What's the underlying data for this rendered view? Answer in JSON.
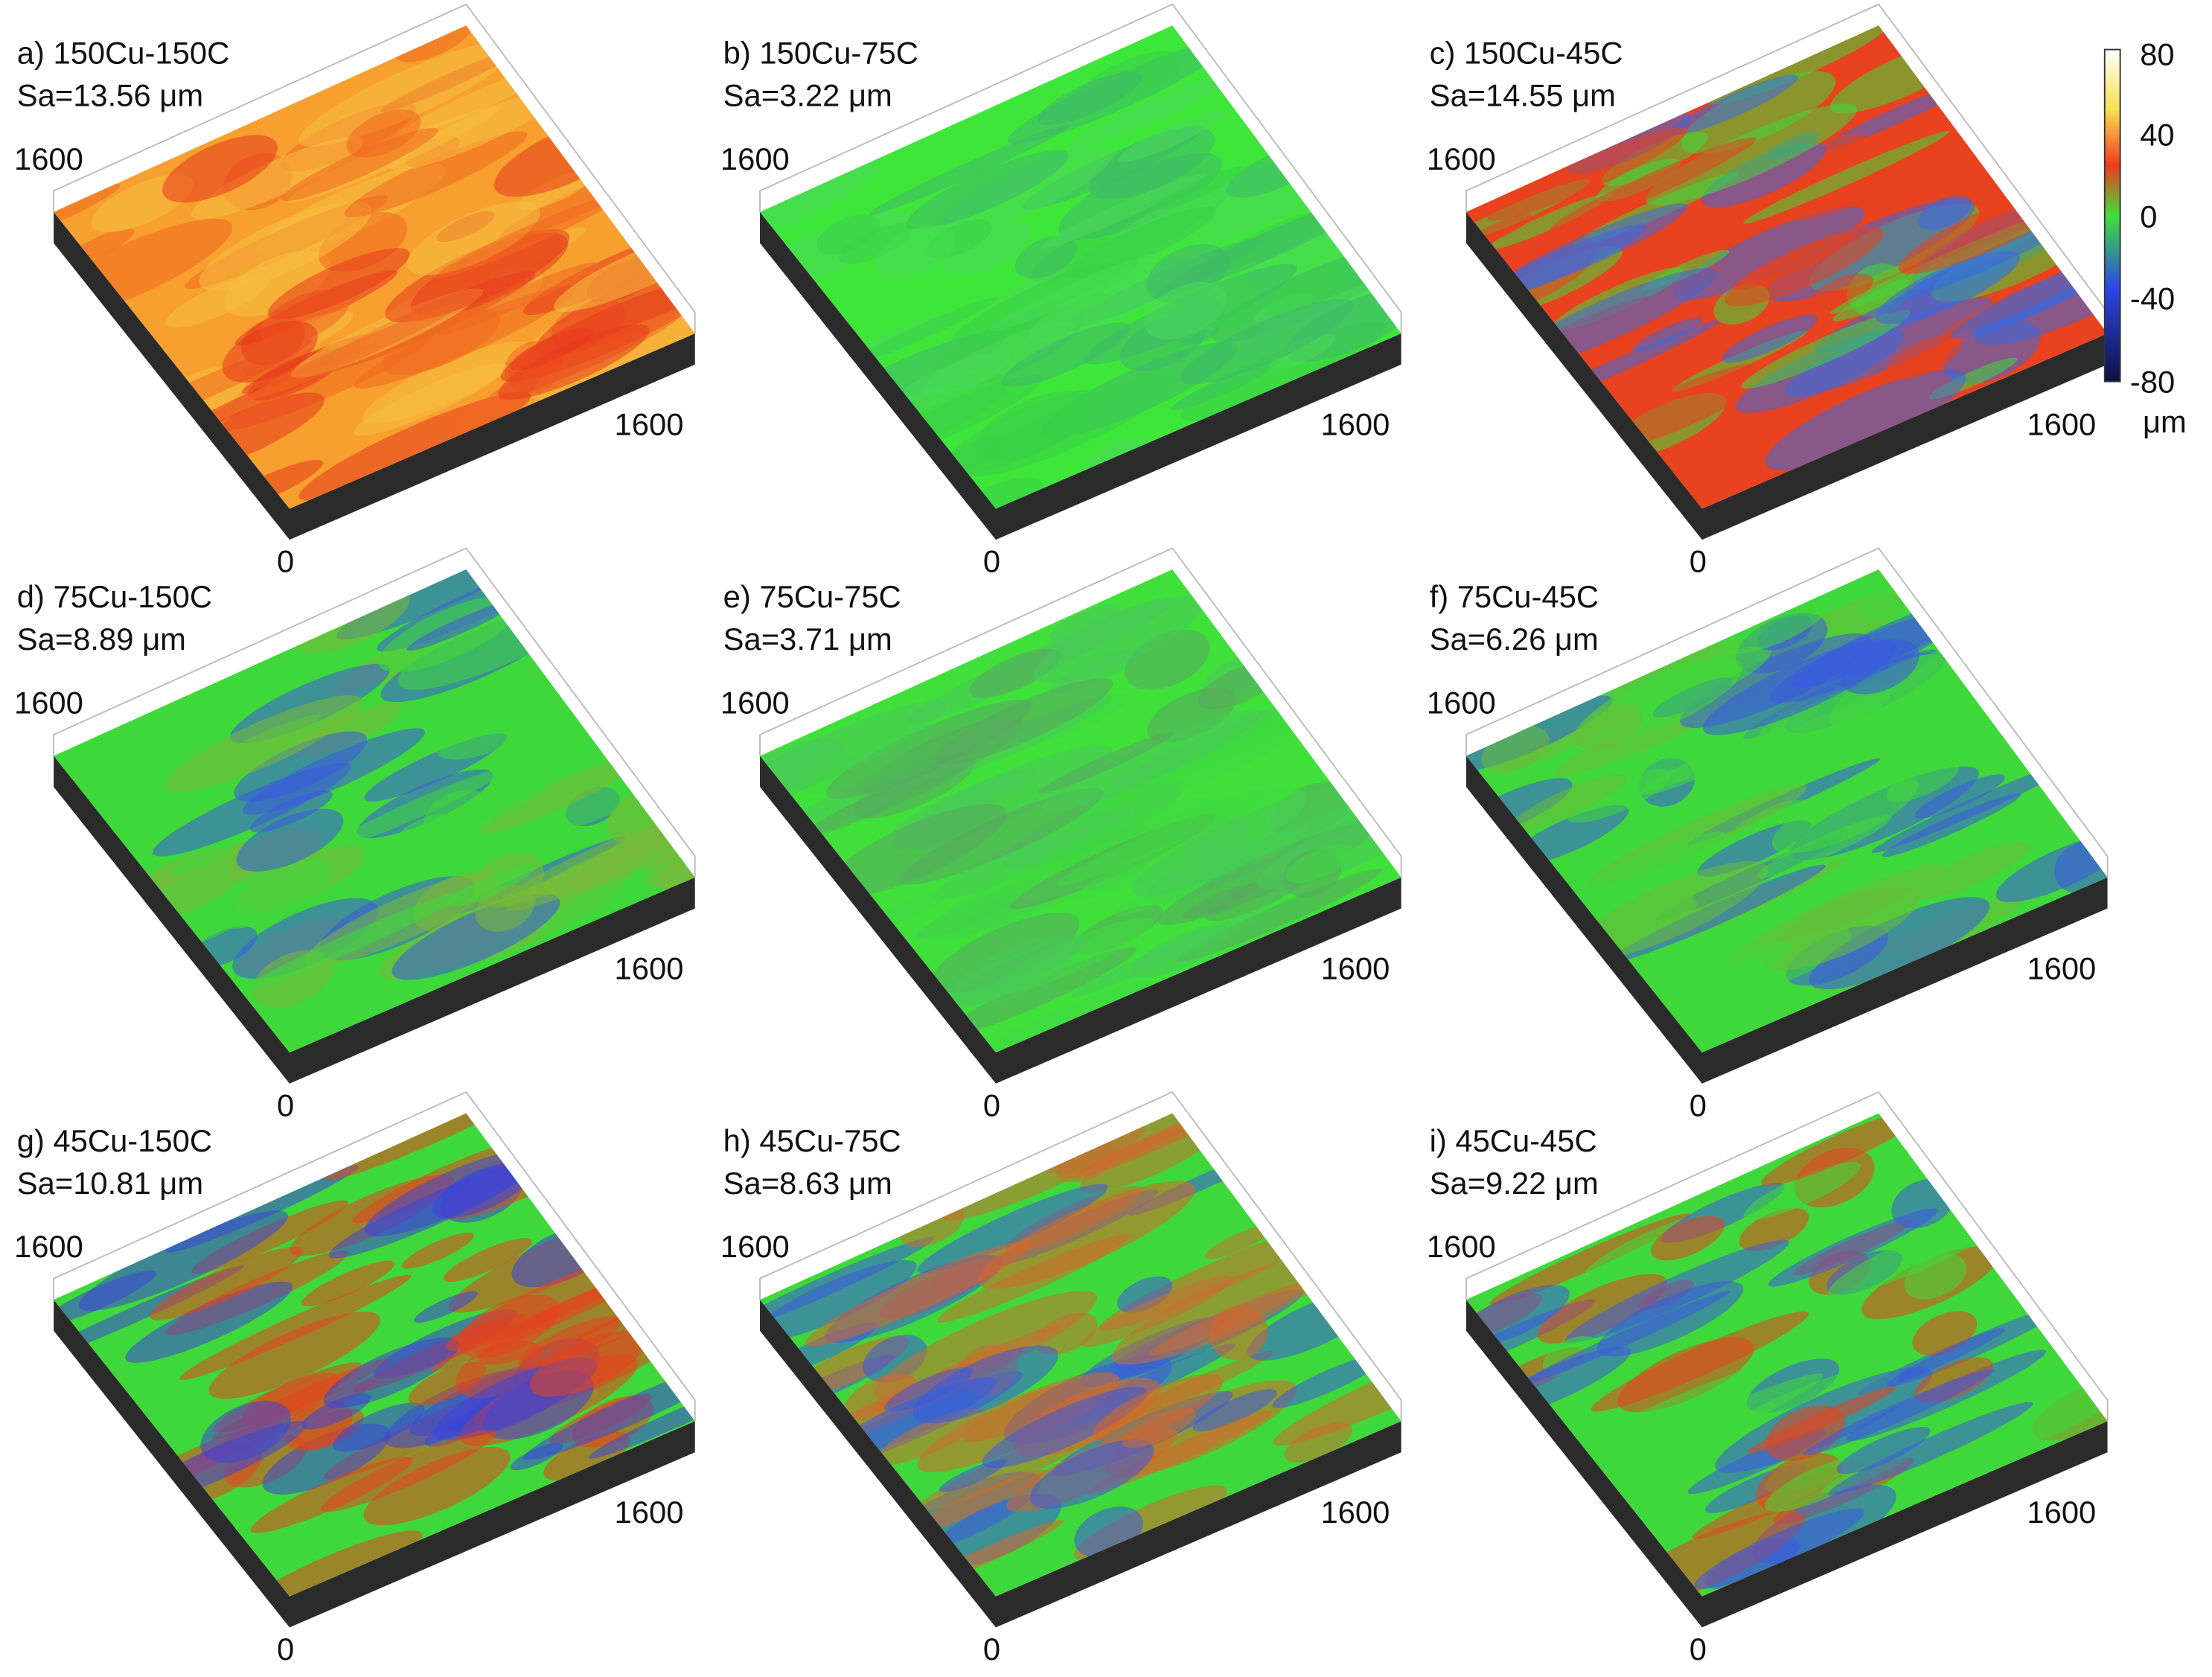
{
  "panels": [
    {
      "label": "a) 150Cu-150C",
      "sa": "Sa=13.56 μm",
      "y_end": "1600",
      "x_end": "1600",
      "origin": "0"
    },
    {
      "label": "b) 150Cu-75C",
      "sa": "Sa=3.22 μm",
      "y_end": "1600",
      "x_end": "1600",
      "origin": "0"
    },
    {
      "label": "c) 150Cu-45C",
      "sa": "Sa=14.55 μm",
      "y_end": "1600",
      "x_end": "1600",
      "origin": "0"
    },
    {
      "label": "d) 75Cu-150C",
      "sa": "Sa=8.89 μm",
      "y_end": "1600",
      "x_end": "1600",
      "origin": "0"
    },
    {
      "label": "e) 75Cu-75C",
      "sa": "Sa=3.71 μm",
      "y_end": "1600",
      "x_end": "1600",
      "origin": "0"
    },
    {
      "label": "f) 75Cu-45C",
      "sa": "Sa=6.26 μm",
      "y_end": "1600",
      "x_end": "1600",
      "origin": "0"
    },
    {
      "label": "g) 45Cu-150C",
      "sa": "Sa=10.81 μm",
      "y_end": "1600",
      "x_end": "1600",
      "origin": "0"
    },
    {
      "label": "h) 45Cu-75C",
      "sa": "Sa=8.63 μm",
      "y_end": "1600",
      "x_end": "1600",
      "origin": "0"
    },
    {
      "label": "i) 45Cu-45C",
      "sa": "Sa=9.22 μm",
      "y_end": "1600",
      "x_end": "1600",
      "origin": "0"
    }
  ],
  "colorbar": {
    "ticks": [
      "80",
      "40",
      "0",
      "-40",
      "-80"
    ],
    "unit": "μm"
  }
}
